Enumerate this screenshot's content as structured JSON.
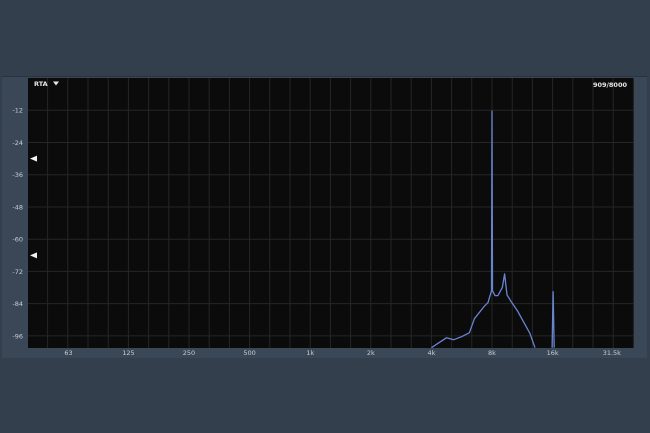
{
  "header": {
    "mode_label": "RTA",
    "mode_dropdown_icon": "caret-down-icon",
    "readout": "909/8000"
  },
  "colors": {
    "background": "#333f4c",
    "plot_background": "#0b0b0c",
    "grid": "#262626",
    "trace": "#6a85d0"
  },
  "chart_data": {
    "type": "line",
    "xscale": "log",
    "xlim": [
      40,
      40000
    ],
    "ylim": [
      -100.5,
      0
    ],
    "grid": true,
    "x_tick_labels": [
      "63",
      "125",
      "250",
      "500",
      "1k",
      "2k",
      "4k",
      "8k",
      "16k",
      "31.5k"
    ],
    "x_tick_values": [
      63,
      125,
      250,
      500,
      1000,
      2000,
      4000,
      8000,
      16000,
      31500
    ],
    "y_tick_labels": [
      "-12",
      "-24",
      "-36",
      "-48",
      "-60",
      "-72",
      "-84",
      "-96"
    ],
    "y_tick_values": [
      -12,
      -24,
      -36,
      -48,
      -60,
      -72,
      -84,
      -96
    ],
    "markers": [
      {
        "name": "upper-level-handle",
        "value": -30
      },
      {
        "name": "lower-level-handle",
        "value": -66
      }
    ],
    "series": [
      {
        "x": [
          4000,
          4750,
          5170,
          5650,
          6180,
          6540,
          7300,
          7640,
          7950,
          8000,
          8050,
          8280,
          8560,
          9000,
          9240,
          9500,
          9900,
          10700,
          11600,
          12330,
          13090
        ],
        "y": [
          -100.4,
          -96.7,
          -97.4,
          -96.3,
          -94.8,
          -89.6,
          -85.1,
          -83.6,
          -79.2,
          -12.3,
          -79.2,
          -81,
          -81,
          -78,
          -72.9,
          -80.7,
          -82.9,
          -86.6,
          -91.4,
          -95,
          -100.4
        ]
      },
      {
        "x": [
          15900,
          16100,
          16300
        ],
        "y": [
          -100.4,
          -79.5,
          -100.4
        ]
      }
    ]
  }
}
